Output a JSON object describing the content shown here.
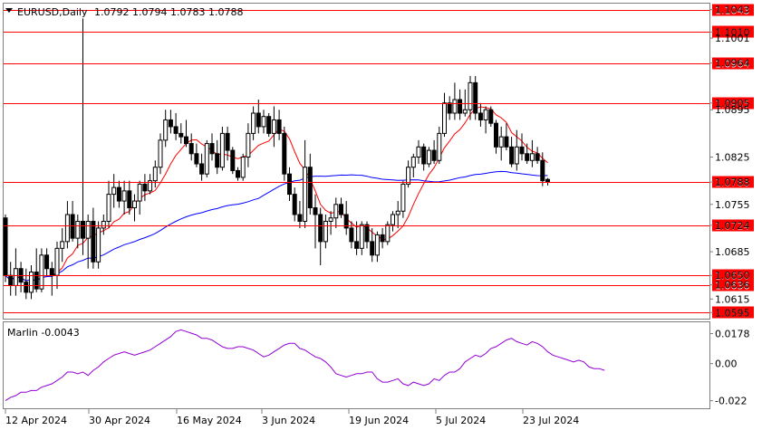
{
  "header": {
    "symbol": "EURUSD,Daily",
    "ohlc": "1.0792 1.0794 1.0783 1.0788",
    "collapse_icon": "triangle-down-icon"
  },
  "colors": {
    "background": "#ffffff",
    "frame": "#7f7f7f",
    "level_line": "#ff0000",
    "level_label_bg": "#ff0000",
    "level_label_text": "#ffffff",
    "candle": "#000000",
    "ma_fast": "#ff0000",
    "ma_slow": "#0000ff",
    "oscillator": "#9400d3"
  },
  "chart_data": [
    {
      "type": "candlestick",
      "ylim": [
        1.0586,
        1.1052
      ],
      "y_ticks": [
        "1.1043",
        "1.1010",
        "1.1001",
        "1.0964",
        "1.0905",
        "1.0895",
        "1.0825",
        "1.0788",
        "1.0755",
        "1.0724",
        "1.0685",
        "1.0650",
        "1.0636",
        "1.0615",
        "1.0595"
      ],
      "x_ticks": [
        "12 Apr 2024",
        "30 Apr 2024",
        "16 May 2024",
        "3 Jun 2024",
        "19 Jun 2024",
        "5 Jul 2024",
        "23 Jul 2024"
      ],
      "horizontal_levels": [
        "1.1043",
        "1.1010",
        "1.0964",
        "1.0905",
        "1.0788",
        "1.0724",
        "1.0650",
        "1.0636",
        "1.0595"
      ],
      "candles": [
        [
          1.0735,
          1.074,
          1.064,
          1.065
        ],
        [
          1.065,
          1.067,
          1.062,
          1.0635
        ],
        [
          1.0635,
          1.069,
          1.062,
          1.066
        ],
        [
          1.066,
          1.067,
          1.0625,
          1.064
        ],
        [
          1.064,
          1.066,
          1.0615,
          1.0625
        ],
        [
          1.0625,
          1.0665,
          1.0615,
          1.0655
        ],
        [
          1.0655,
          1.069,
          1.0625,
          1.063
        ],
        [
          1.063,
          1.069,
          1.0625,
          1.068
        ],
        [
          1.068,
          1.069,
          1.065,
          1.066
        ],
        [
          1.066,
          1.067,
          1.062,
          1.065
        ],
        [
          1.065,
          1.07,
          1.063,
          1.069
        ],
        [
          1.069,
          1.072,
          1.067,
          1.07
        ],
        [
          1.07,
          1.076,
          1.069,
          1.074
        ],
        [
          1.074,
          1.076,
          1.07,
          1.0705
        ],
        [
          1.0705,
          1.074,
          1.069,
          1.073
        ],
        [
          1.073,
          1.103,
          1.068,
          1.0705
        ],
        [
          1.0705,
          1.074,
          1.066,
          1.073
        ],
        [
          1.073,
          1.075,
          1.066,
          1.067
        ],
        [
          1.067,
          1.073,
          1.066,
          1.072
        ],
        [
          1.072,
          1.074,
          1.071,
          1.073
        ],
        [
          1.073,
          1.079,
          1.072,
          1.077
        ],
        [
          1.077,
          1.08,
          1.075,
          1.078
        ],
        [
          1.078,
          1.079,
          1.075,
          1.076
        ],
        [
          1.076,
          1.079,
          1.074,
          1.0775
        ],
        [
          1.0775,
          1.079,
          1.074,
          1.075
        ],
        [
          1.075,
          1.077,
          1.073,
          1.076
        ],
        [
          1.076,
          1.079,
          1.074,
          1.0785
        ],
        [
          1.0785,
          1.08,
          1.076,
          1.0775
        ],
        [
          1.0775,
          1.08,
          1.077,
          1.079
        ],
        [
          1.079,
          1.082,
          1.078,
          1.081
        ],
        [
          1.081,
          1.086,
          1.08,
          1.085
        ],
        [
          1.085,
          1.0895,
          1.084,
          1.088
        ],
        [
          1.088,
          1.0895,
          1.086,
          1.087
        ],
        [
          1.087,
          1.089,
          1.085,
          1.086
        ],
        [
          1.086,
          1.0875,
          1.0845,
          1.0855
        ],
        [
          1.0855,
          1.088,
          1.084,
          1.0845
        ],
        [
          1.0845,
          1.086,
          1.082,
          1.083
        ],
        [
          1.083,
          1.0845,
          1.081,
          1.0815
        ],
        [
          1.0815,
          1.083,
          1.079,
          1.08
        ],
        [
          1.08,
          1.085,
          1.0795,
          1.0845
        ],
        [
          1.0845,
          1.086,
          1.082,
          1.083
        ],
        [
          1.083,
          1.085,
          1.08,
          1.081
        ],
        [
          1.081,
          1.087,
          1.0805,
          1.086
        ],
        [
          1.086,
          1.087,
          1.082,
          1.0835
        ],
        [
          1.0835,
          1.084,
          1.08,
          1.0805
        ],
        [
          1.0805,
          1.081,
          1.079,
          1.0795
        ],
        [
          1.0795,
          1.083,
          1.079,
          1.0825
        ],
        [
          1.0825,
          1.0875,
          1.081,
          1.086
        ],
        [
          1.086,
          1.09,
          1.085,
          1.089
        ],
        [
          1.089,
          1.091,
          1.086,
          1.087
        ],
        [
          1.087,
          1.0895,
          1.086,
          1.0885
        ],
        [
          1.0885,
          1.089,
          1.0855,
          1.086
        ],
        [
          1.086,
          1.09,
          1.084,
          1.088
        ],
        [
          1.088,
          1.0895,
          1.085,
          1.086
        ],
        [
          1.086,
          1.087,
          1.079,
          1.08
        ],
        [
          1.08,
          1.081,
          1.076,
          1.077
        ],
        [
          1.077,
          1.078,
          1.073,
          1.074
        ],
        [
          1.074,
          1.076,
          1.072,
          1.073
        ],
        [
          1.073,
          1.085,
          1.072,
          1.081
        ],
        [
          1.081,
          1.083,
          1.074,
          1.075
        ],
        [
          1.075,
          1.077,
          1.069,
          1.074
        ],
        [
          1.074,
          1.075,
          1.0665,
          1.07
        ],
        [
          1.07,
          1.074,
          1.069,
          1.073
        ],
        [
          1.073,
          1.0745,
          1.071,
          1.0735
        ],
        [
          1.0735,
          1.0765,
          1.072,
          1.0755
        ],
        [
          1.0755,
          1.0765,
          1.0735,
          1.074
        ],
        [
          1.074,
          1.076,
          1.071,
          1.072
        ],
        [
          1.072,
          1.073,
          1.069,
          1.07
        ],
        [
          1.07,
          1.073,
          1.068,
          1.069
        ],
        [
          1.069,
          1.073,
          1.068,
          1.0725
        ],
        [
          1.0725,
          1.073,
          1.069,
          1.07
        ],
        [
          1.07,
          1.072,
          1.067,
          1.068
        ],
        [
          1.068,
          1.0715,
          1.067,
          1.071
        ],
        [
          1.071,
          1.072,
          1.069,
          1.07
        ],
        [
          1.07,
          1.073,
          1.0695,
          1.0725
        ],
        [
          1.0725,
          1.0745,
          1.0715,
          1.074
        ],
        [
          1.074,
          1.076,
          1.072,
          1.0745
        ],
        [
          1.0745,
          1.079,
          1.0735,
          1.0785
        ],
        [
          1.0785,
          1.082,
          1.078,
          1.081
        ],
        [
          1.081,
          1.083,
          1.0795,
          1.0825
        ],
        [
          1.0825,
          1.085,
          1.0815,
          1.084
        ],
        [
          1.084,
          1.0845,
          1.0805,
          1.0815
        ],
        [
          1.0815,
          1.084,
          1.081,
          1.0835
        ],
        [
          1.0835,
          1.085,
          1.0815,
          1.082
        ],
        [
          1.082,
          1.087,
          1.0815,
          1.086
        ],
        [
          1.086,
          1.092,
          1.0855,
          1.0905
        ],
        [
          1.0905,
          1.0915,
          1.088,
          1.089
        ],
        [
          1.089,
          1.0935,
          1.088,
          1.091
        ],
        [
          1.091,
          1.0925,
          1.088,
          1.089
        ],
        [
          1.089,
          1.0925,
          1.0885,
          1.0895
        ],
        [
          1.0895,
          1.0945,
          1.088,
          1.0935
        ],
        [
          1.0935,
          1.0945,
          1.088,
          1.089
        ],
        [
          1.089,
          1.0905,
          1.087,
          1.088
        ],
        [
          1.088,
          1.09,
          1.086,
          1.0895
        ],
        [
          1.0895,
          1.09,
          1.087,
          1.0875
        ],
        [
          1.0875,
          1.088,
          1.083,
          1.084
        ],
        [
          1.084,
          1.087,
          1.082,
          1.0855
        ],
        [
          1.0855,
          1.0875,
          1.0835,
          1.084
        ],
        [
          1.084,
          1.0855,
          1.081,
          1.0815
        ],
        [
          1.0815,
          1.0865,
          1.0805,
          1.084
        ],
        [
          1.084,
          1.086,
          1.082,
          1.083
        ],
        [
          1.083,
          1.0845,
          1.0815,
          1.082
        ],
        [
          1.082,
          1.085,
          1.081,
          1.083
        ],
        [
          1.083,
          1.084,
          1.0815,
          1.082
        ],
        [
          1.082,
          1.0832,
          1.0782,
          1.079
        ],
        [
          1.0792,
          1.0794,
          1.0783,
          1.0788
        ]
      ]
    },
    {
      "type": "line",
      "title": "Marlin -0.0043",
      "ylim": [
        -0.0265,
        0.0245
      ],
      "y_ticks": [
        "0.0178",
        "0.00",
        "-0.022"
      ],
      "values": [
        -0.022,
        -0.02,
        -0.019,
        -0.017,
        -0.017,
        -0.016,
        -0.016,
        -0.014,
        -0.013,
        -0.012,
        -0.01,
        -0.008,
        -0.005,
        -0.005,
        -0.006,
        -0.005,
        -0.007,
        -0.004,
        -0.002,
        0.001,
        0.003,
        0.005,
        0.006,
        0.007,
        0.006,
        0.005,
        0.006,
        0.007,
        0.008,
        0.01,
        0.012,
        0.014,
        0.016,
        0.019,
        0.02,
        0.019,
        0.018,
        0.017,
        0.015,
        0.015,
        0.014,
        0.012,
        0.01,
        0.009,
        0.009,
        0.01,
        0.01,
        0.009,
        0.008,
        0.006,
        0.004,
        0.005,
        0.007,
        0.009,
        0.011,
        0.012,
        0.012,
        0.009,
        0.008,
        0.006,
        0.004,
        0.003,
        0.001,
        -0.002,
        -0.006,
        -0.007,
        -0.008,
        -0.007,
        -0.006,
        -0.006,
        -0.005,
        -0.005,
        -0.009,
        -0.011,
        -0.011,
        -0.01,
        -0.009,
        -0.012,
        -0.013,
        -0.011,
        -0.012,
        -0.013,
        -0.012,
        -0.009,
        -0.01,
        -0.007,
        -0.005,
        -0.005,
        -0.003,
        0.001,
        0.003,
        0.005,
        0.004,
        0.006,
        0.009,
        0.01,
        0.012,
        0.014,
        0.015,
        0.013,
        0.012,
        0.011,
        0.013,
        0.012,
        0.01,
        0.007,
        0.005,
        0.004,
        0.003,
        0.002,
        0.001,
        0.002,
        0.001,
        -0.002,
        -0.003,
        -0.003,
        -0.004
      ]
    }
  ]
}
